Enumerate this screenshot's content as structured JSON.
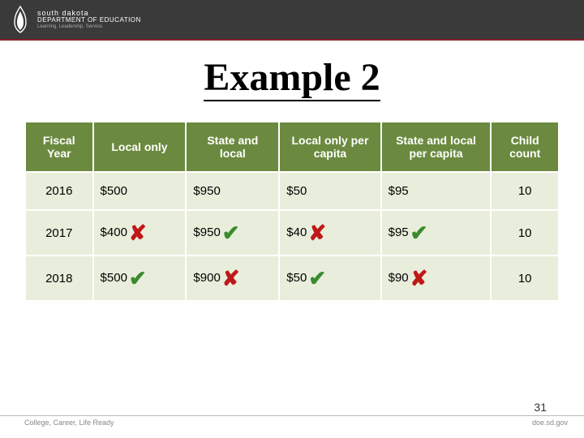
{
  "header": {
    "brand_line1": "south dakota",
    "brand_line2": "DEPARTMENT OF EDUCATION",
    "brand_line3": "Learning. Leadership. Service."
  },
  "title": "Example 2",
  "table": {
    "columns": [
      "Fiscal Year",
      "Local only",
      "State and local",
      "Local only per capita",
      "State and local per capita",
      "Child count"
    ],
    "rows": [
      {
        "year": "2016",
        "local_only": "$500",
        "state_local": "$950",
        "local_pc": "$50",
        "state_local_pc": "$95",
        "count": "10",
        "marks": [
          "",
          "",
          "",
          "",
          ""
        ]
      },
      {
        "year": "2017",
        "local_only": "$400",
        "state_local": "$950",
        "local_pc": "$40",
        "state_local_pc": "$95",
        "count": "10",
        "marks": [
          "cross",
          "check",
          "cross",
          "check",
          ""
        ]
      },
      {
        "year": "2018",
        "local_only": "$500",
        "state_local": "$900",
        "local_pc": "$50",
        "state_local_pc": "$90",
        "count": "10",
        "marks": [
          "check",
          "cross",
          "check",
          "cross",
          ""
        ]
      }
    ],
    "col_widths": [
      "80px",
      "110px",
      "110px",
      "120px",
      "130px",
      "80px"
    ]
  },
  "footer": {
    "left": "College, Career, Life Ready",
    "right": "doe.sd.gov"
  },
  "page_number": "31",
  "colors": {
    "topbar": "#3a3a3a",
    "accent": "#8a1f2b",
    "th_bg": "#6b8a3f",
    "td_bg": "#e8eedb",
    "check": "#3a8a2f",
    "cross": "#c01818"
  }
}
